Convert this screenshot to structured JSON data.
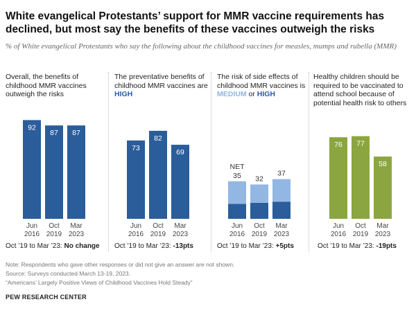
{
  "title": "White evangelical Protestants’ support for MMR vaccine requirements has declined, but most say the benefits of these vaccines outweigh the risks",
  "subtitle": "% of White evangelical Protestants who say the following about the childhood vaccines for measles, mumps and rubella (MMR)",
  "panels": [
    {
      "heading": "Overall, the benefits of childhood MMR vaccines outweigh the risks",
      "change_prefix": "Oct ’19 to Mar ’23: ",
      "change_value": "No change"
    },
    {
      "heading_pre": "The preventative benefits of childhood MMR vaccines are ",
      "heading_high": "HIGH",
      "change_prefix": "Oct ’19 to Mar ’23: ",
      "change_value": "-13pts"
    },
    {
      "heading_pre": "The risk of side effects of childhood MMR vaccines is ",
      "heading_med": "MEDIUM",
      "heading_or": " or ",
      "heading_high": "HIGH",
      "change_prefix": "Oct ’19 to Mar ’23: ",
      "change_value": "+5pts"
    },
    {
      "heading": "Healthy children should be required to be vaccinated to attend school because of potential health risk to others",
      "change_prefix": "Oct ’19 to Mar ’23: ",
      "change_value": "-19pts"
    }
  ],
  "net_label": "NET",
  "colors": {
    "blue_dark": "#2a5d9a",
    "blue_light": "#93b7e3",
    "green": "#8ba640"
  },
  "chart_data": [
    {
      "type": "bar",
      "categories": [
        "Jun 2016",
        "Oct 2019",
        "Mar 2023"
      ],
      "values": [
        92,
        87,
        87
      ],
      "ylim": [
        0,
        100
      ]
    },
    {
      "type": "bar",
      "categories": [
        "Jun 2016",
        "Oct 2019",
        "Mar 2023"
      ],
      "values": [
        73,
        82,
        69
      ],
      "ylim": [
        0,
        100
      ]
    },
    {
      "type": "bar",
      "stacked": true,
      "categories": [
        "Jun 2016",
        "Oct 2019",
        "Mar 2023"
      ],
      "totals": [
        35,
        32,
        37
      ],
      "series": [
        {
          "name": "HIGH",
          "values": [
            14,
            15,
            16
          ]
        },
        {
          "name": "MEDIUM",
          "values": [
            21,
            17,
            21
          ]
        }
      ],
      "ylim": [
        0,
        100
      ]
    },
    {
      "type": "bar",
      "categories": [
        "Jun 2016",
        "Oct 2019",
        "Mar 2023"
      ],
      "values": [
        76,
        77,
        58
      ],
      "ylim": [
        0,
        100
      ]
    }
  ],
  "notes": [
    "Note: Respondents who gave other responses or did not give an answer are not shown.",
    "Source: Surveys conducted March 13-19, 2023.",
    "“Americans’ Largely Positive Views of Childhood Vaccines Hold Steady”"
  ],
  "org": "PEW RESEARCH CENTER"
}
